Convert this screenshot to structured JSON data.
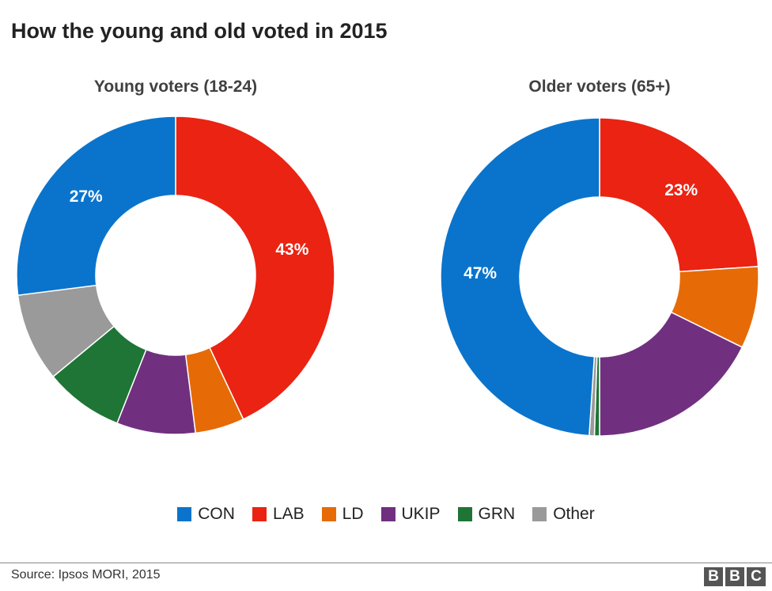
{
  "title": "How the young and old voted in 2015",
  "colors": {
    "CON": "#0a74cc",
    "LAB": "#ea2313",
    "LD": "#e66b06",
    "UKIP": "#70307f",
    "GRN": "#1e7535",
    "Other": "#9a9a9a"
  },
  "chart_data": [
    {
      "type": "pie",
      "donut": true,
      "title": "Young voters (18-24)",
      "categories": [
        "LAB",
        "LD",
        "UKIP",
        "GRN",
        "Other",
        "CON"
      ],
      "values": [
        43,
        5,
        8,
        8,
        9,
        27
      ],
      "data_labels": {
        "LAB": "43%",
        "CON": "27%"
      }
    },
    {
      "type": "pie",
      "donut": true,
      "title": "Older voters (65+)",
      "categories": [
        "LAB",
        "LD",
        "UKIP",
        "GRN",
        "Other",
        "CON"
      ],
      "values": [
        23,
        8,
        17,
        0.5,
        0.5,
        47
      ],
      "data_labels": {
        "LAB": "23%",
        "CON": "47%"
      }
    }
  ],
  "legend": [
    "CON",
    "LAB",
    "LD",
    "UKIP",
    "GRN",
    "Other"
  ],
  "source": "Source: Ipsos MORI, 2015",
  "logo": [
    "B",
    "B",
    "C"
  ]
}
